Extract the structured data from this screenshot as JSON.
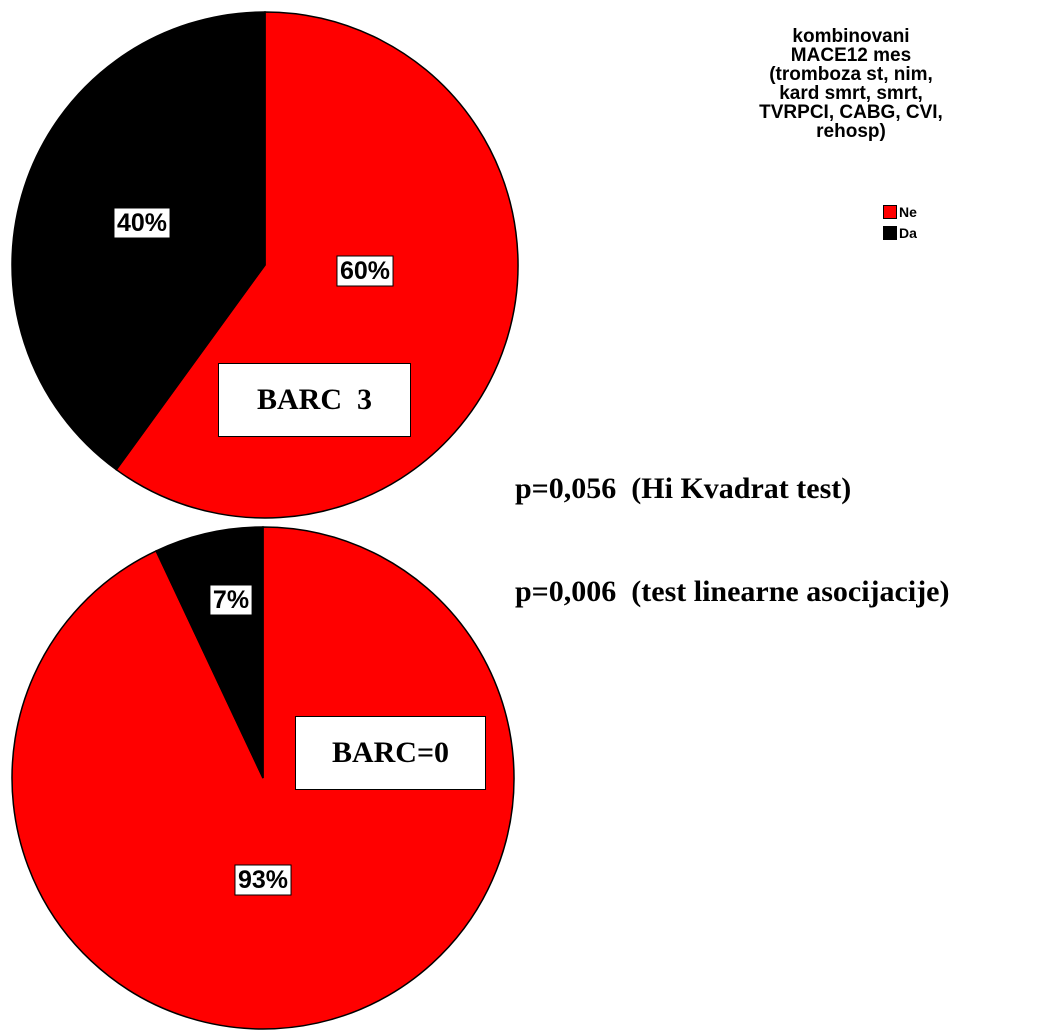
{
  "chart_data": [
    {
      "type": "pie",
      "group_label": "BARC  3",
      "slices": [
        {
          "label": "Ne",
          "value": 60,
          "data_label": "60%",
          "color": "#ff0000"
        },
        {
          "label": "Da",
          "value": 40,
          "data_label": "40%",
          "color": "#000000"
        }
      ]
    },
    {
      "type": "pie",
      "group_label": "BARC=0",
      "slices": [
        {
          "label": "Ne",
          "value": 93,
          "data_label": "93%",
          "color": "#ff0000"
        },
        {
          "label": "Da",
          "value": 7,
          "data_label": "7%",
          "color": "#000000"
        }
      ]
    }
  ],
  "legend": {
    "title_lines": [
      "kombinovani",
      "MACE12 mes",
      "(tromboza st, nim,",
      "kard smrt, smrt,",
      "TVRPCI, CABG, CVI,",
      "rehosp)"
    ],
    "entries": [
      {
        "label": "Ne",
        "color": "#ff0000"
      },
      {
        "label": "Da",
        "color": "#000000"
      }
    ]
  },
  "stats": {
    "chi_square": "p=0,056  (Hi Kvadrat test)",
    "linear_assoc": "p=0,006  (test linearne asocijacije)"
  }
}
